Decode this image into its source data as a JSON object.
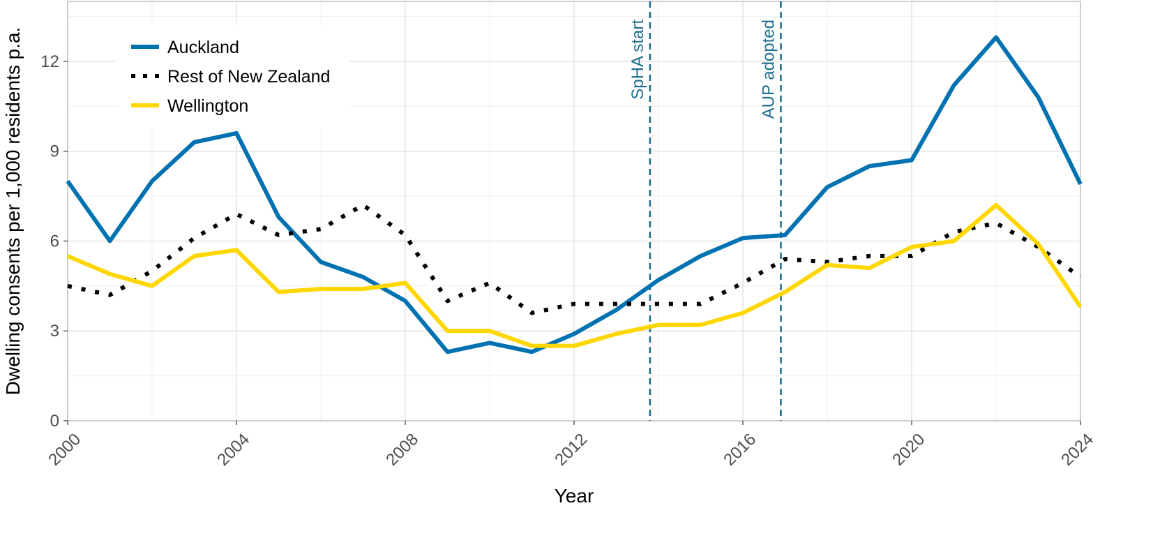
{
  "chart_data": {
    "type": "line",
    "xlabel": "Year",
    "ylabel": "Dwelling consents per 1,000 residents p.a.",
    "xlim": [
      2000,
      2024
    ],
    "ylim": [
      0,
      14
    ],
    "x_ticks": [
      2000,
      2004,
      2008,
      2012,
      2016,
      2020,
      2024
    ],
    "y_ticks": [
      0,
      3,
      6,
      9,
      12
    ],
    "grid": true,
    "legend_position": "top-left",
    "x": [
      2000,
      2001,
      2002,
      2003,
      2004,
      2005,
      2006,
      2007,
      2008,
      2009,
      2010,
      2011,
      2012,
      2013,
      2014,
      2015,
      2016,
      2017,
      2018,
      2019,
      2020,
      2021,
      2022,
      2023,
      2024
    ],
    "series": [
      {
        "name": "Auckland",
        "color": "#0072B2",
        "dash": "solid",
        "values": [
          8.0,
          6.0,
          8.0,
          9.3,
          9.6,
          6.8,
          5.3,
          4.8,
          4.0,
          2.3,
          2.6,
          2.3,
          2.9,
          3.7,
          4.7,
          5.5,
          6.1,
          6.2,
          7.8,
          8.5,
          8.7,
          11.2,
          12.8,
          10.8,
          7.9
        ]
      },
      {
        "name": "Rest of New Zealand",
        "color": "#000000",
        "dash": "dotted",
        "values": [
          4.5,
          4.2,
          5.0,
          6.1,
          6.9,
          6.2,
          6.4,
          7.2,
          6.2,
          4.0,
          4.6,
          3.6,
          3.9,
          3.9,
          3.9,
          3.9,
          4.6,
          5.4,
          5.3,
          5.5,
          5.5,
          6.3,
          6.6,
          5.8,
          4.8
        ]
      },
      {
        "name": "Wellington",
        "color": "#FFD700",
        "dash": "solid",
        "values": [
          5.5,
          4.9,
          4.5,
          5.5,
          5.7,
          4.3,
          4.4,
          4.4,
          4.6,
          3.0,
          3.0,
          2.5,
          2.5,
          2.9,
          3.2,
          3.2,
          3.6,
          4.3,
          5.2,
          5.1,
          5.8,
          6.0,
          7.2,
          5.9,
          3.8
        ]
      }
    ],
    "reference_lines": [
      {
        "x": 2013.8,
        "label": "SpHA start",
        "color": "#1F6E8C"
      },
      {
        "x": 2016.9,
        "label": "AUP adopted",
        "color": "#1F6E8C"
      }
    ]
  }
}
